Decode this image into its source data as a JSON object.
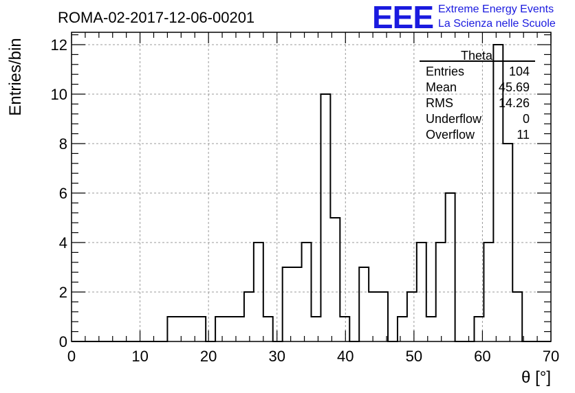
{
  "header": {
    "title": "ROMA-02-2017-12-06-00201",
    "logo": "EEE",
    "logo_line1": "Extreme Energy Events",
    "logo_line2": "La Scienza nelle Scuole"
  },
  "stats": {
    "name": "Theta",
    "rows": [
      {
        "label": "Entries",
        "value": "104"
      },
      {
        "label": "Mean",
        "value": "45.69"
      },
      {
        "label": "RMS",
        "value": "14.26"
      },
      {
        "label": "Underflow",
        "value": "0"
      },
      {
        "label": "Overflow",
        "value": "11"
      }
    ]
  },
  "chart_data": {
    "type": "histogram",
    "xlabel": "θ [°]",
    "ylabel": "Entries/bin",
    "xlim": [
      0,
      70
    ],
    "ylim": [
      0,
      12.5
    ],
    "x_ticks": [
      0,
      10,
      20,
      30,
      40,
      50,
      60,
      70
    ],
    "y_ticks": [
      0,
      2,
      4,
      6,
      8,
      10,
      12
    ],
    "grid": true,
    "bin_width": 1.4,
    "bin_edges_start": 0,
    "bin_contents": [
      0,
      0,
      0,
      0,
      0,
      0,
      0,
      0,
      0,
      0,
      1,
      1,
      1,
      1,
      0,
      1,
      1,
      1,
      2,
      4,
      1,
      0,
      3,
      3,
      4,
      1,
      10,
      5,
      1,
      0,
      3,
      2,
      2,
      0,
      1,
      2,
      4,
      1,
      4,
      6,
      0,
      0,
      1,
      4,
      12,
      8,
      2,
      0,
      0,
      0
    ]
  }
}
